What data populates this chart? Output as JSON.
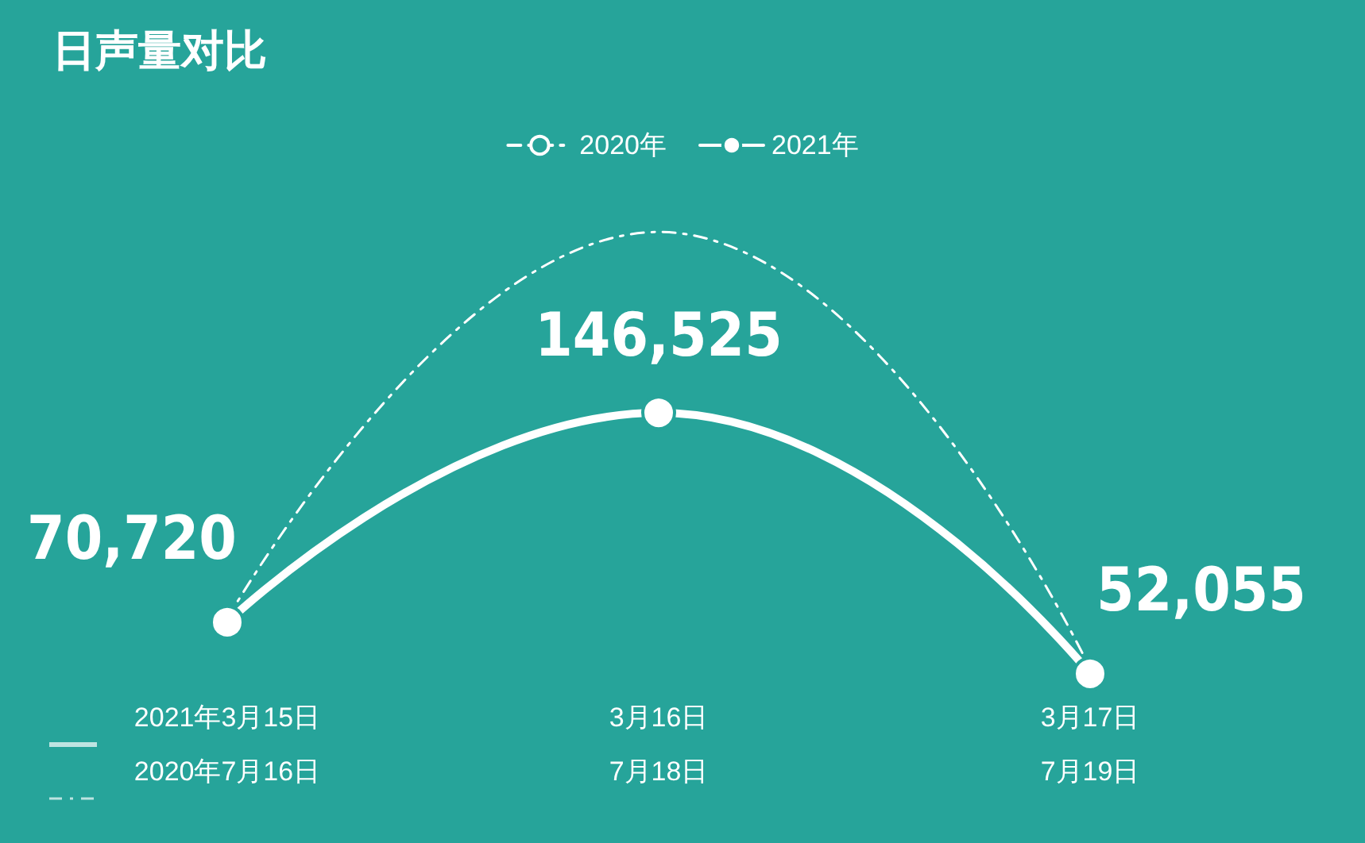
{
  "chart_data": {
    "type": "line",
    "title": "日声量对比",
    "categories": [
      "2021年3月15日\n2020年7月16日",
      "3月16日\n7月18日",
      "3月17日\n7月19日"
    ],
    "series": [
      {
        "name": "2020年",
        "color": "#ffffff",
        "values": [
          72000,
          212000,
          54000
        ],
        "line_style": "dashed",
        "marker": "none"
      },
      {
        "name": "2021年",
        "color": "#ffffff",
        "values": [
          70720,
          146525,
          52055
        ],
        "value_labels": [
          "70,720",
          "146,525",
          "52,055"
        ],
        "line_style": "solid",
        "marker": "circle"
      }
    ],
    "legend": "top",
    "grid": false
  }
}
